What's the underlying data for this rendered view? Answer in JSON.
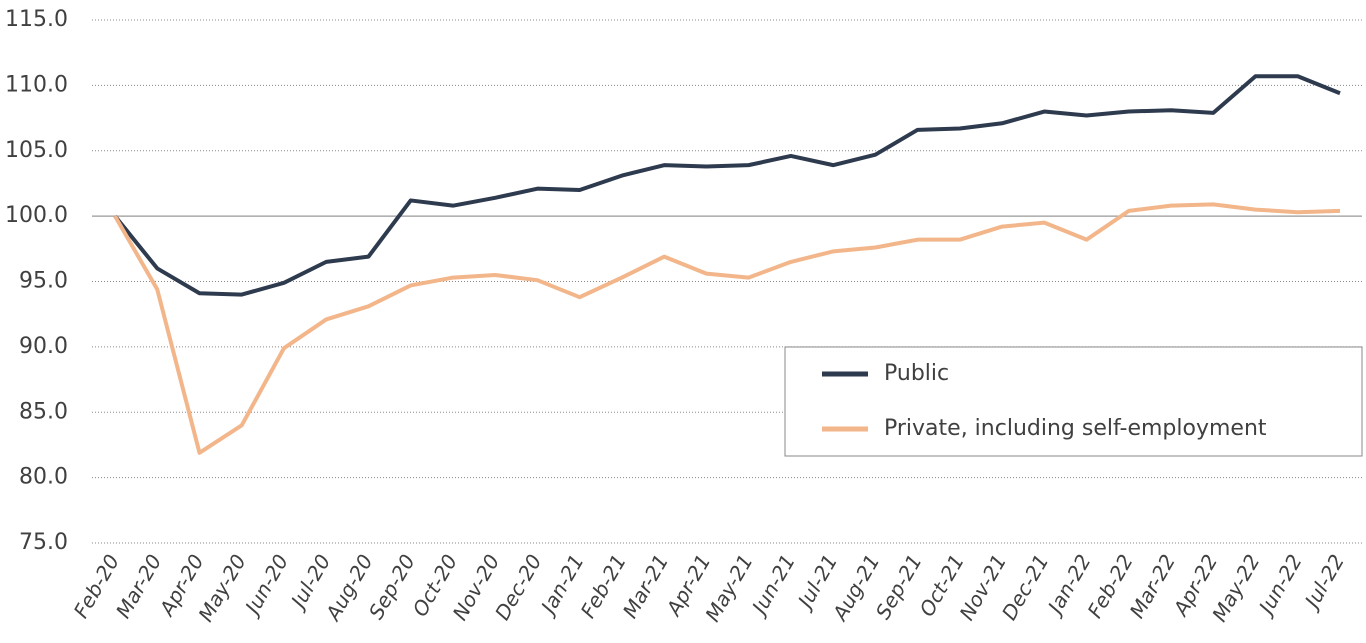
{
  "chart_data": {
    "type": "line",
    "categories": [
      "Feb-20",
      "Mar-20",
      "Apr-20",
      "May-20",
      "Jun-20",
      "Jul-20",
      "Aug-20",
      "Sep-20",
      "Oct-20",
      "Nov-20",
      "Dec-20",
      "Jan-21",
      "Feb-21",
      "Mar-21",
      "Apr-21",
      "May-21",
      "Jun-21",
      "Jul-21",
      "Aug-21",
      "Sep-21",
      "Oct-21",
      "Nov-21",
      "Dec-21",
      "Jan-22",
      "Feb-22",
      "Mar-22",
      "Apr-22",
      "May-22",
      "Jun-22",
      "Jul-22"
    ],
    "series": [
      {
        "name": "Public",
        "color": "#2e3a4e",
        "values": [
          100,
          96.0,
          94.1,
          94.0,
          94.9,
          96.5,
          96.9,
          101.2,
          100.8,
          101.4,
          102.1,
          102.0,
          103.1,
          103.9,
          103.8,
          103.9,
          104.6,
          103.9,
          104.7,
          106.6,
          106.7,
          107.1,
          108.0,
          107.7,
          108.0,
          108.1,
          107.9,
          110.7,
          110.7,
          109.4
        ]
      },
      {
        "name": "Private, including self-employment",
        "color": "#f2b68a",
        "values": [
          100,
          94.4,
          81.9,
          84.0,
          89.9,
          92.1,
          93.1,
          94.7,
          95.3,
          95.5,
          95.1,
          93.8,
          95.3,
          96.9,
          95.6,
          95.3,
          96.5,
          97.3,
          97.6,
          98.2,
          98.2,
          99.2,
          99.5,
          98.2,
          100.4,
          100.8,
          100.9,
          100.5,
          100.3,
          100.4
        ]
      }
    ],
    "ylim": [
      75,
      115
    ],
    "yticks": [
      {
        "value": 75,
        "label": "75.0"
      },
      {
        "value": 80,
        "label": "80.0"
      },
      {
        "value": 85,
        "label": "85.0"
      },
      {
        "value": 90,
        "label": "90.0"
      },
      {
        "value": 95,
        "label": "95.0"
      },
      {
        "value": 100,
        "label": "100.0"
      },
      {
        "value": 105,
        "label": "105.0"
      },
      {
        "value": 110,
        "label": "110.0"
      },
      {
        "value": 115,
        "label": "115.0"
      }
    ],
    "grid": true,
    "legend": "right"
  }
}
